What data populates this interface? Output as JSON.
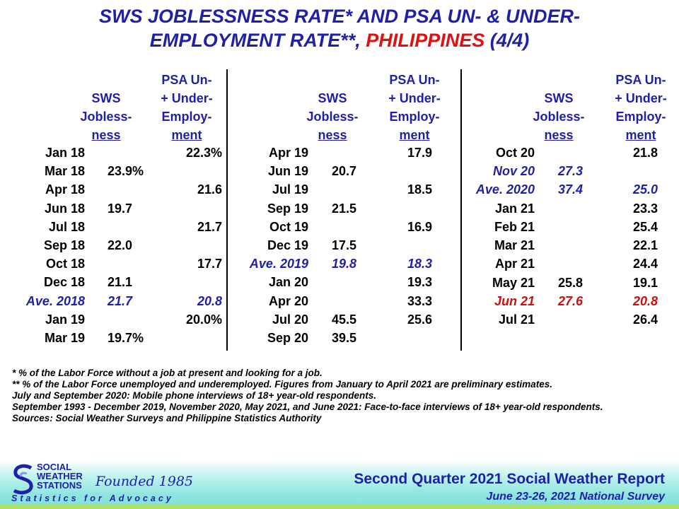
{
  "title": {
    "line1": "SWS JOBLESSNESS RATE* AND PSA UN- & UNDER-",
    "line2_prefix": "EMPLOYMENT RATE**, ",
    "line2_red": "PHILIPPINES",
    "line2_suffix": " (4/4)"
  },
  "headers": {
    "sws": [
      "SWS",
      "Jobless-",
      "ness"
    ],
    "psa": [
      "PSA Un-",
      "+ Under-",
      "Employ-",
      "ment"
    ]
  },
  "panels": [
    {
      "rows": [
        {
          "label": "Jan 18",
          "sws": "",
          "psa": "22.3%"
        },
        {
          "label": "Mar 18",
          "sws": "23.9%",
          "psa": ""
        },
        {
          "label": "Apr 18",
          "sws": "",
          "psa": "21.6"
        },
        {
          "label": "Jun 18",
          "sws": "19.7",
          "psa": ""
        },
        {
          "label": "Jul 18",
          "sws": "",
          "psa": "21.7"
        },
        {
          "label": "Sep 18",
          "sws": "22.0",
          "psa": ""
        },
        {
          "label": "Oct 18",
          "sws": "",
          "psa": "17.7"
        },
        {
          "label": "Dec 18",
          "sws": "21.1",
          "psa": ""
        },
        {
          "label": "Ave. 2018",
          "sws": "21.7",
          "psa": "20.8",
          "style": "blue"
        },
        {
          "label": "Jan 19",
          "sws": "",
          "psa": "20.0%"
        },
        {
          "label": "Mar 19",
          "sws": "19.7%",
          "psa": ""
        }
      ]
    },
    {
      "rows": [
        {
          "label": "Apr 19",
          "sws": "",
          "psa": "17.9"
        },
        {
          "label": "Jun 19",
          "sws": "20.7",
          "psa": ""
        },
        {
          "label": "Jul 19",
          "sws": "",
          "psa": "18.5"
        },
        {
          "label": "Sep 19",
          "sws": "21.5",
          "psa": ""
        },
        {
          "label": "Oct 19",
          "sws": "",
          "psa": "16.9"
        },
        {
          "label": "Dec 19",
          "sws": "17.5",
          "psa": ""
        },
        {
          "label": "Ave. 2019",
          "sws": "19.8",
          "psa": "18.3",
          "style": "blue"
        },
        {
          "label": "Jan 20",
          "sws": "",
          "psa": "19.3"
        },
        {
          "label": "Apr 20",
          "sws": "",
          "psa": "33.3"
        },
        {
          "label": "Jul 20",
          "sws": "45.5",
          "psa": "25.6"
        },
        {
          "label": "Sep 20",
          "sws": "39.5",
          "psa": ""
        }
      ]
    },
    {
      "rows": [
        {
          "label": "Oct 20",
          "sws": "",
          "psa": "21.8"
        },
        {
          "label": "Nov 20",
          "sws": "27.3",
          "psa": "",
          "style": "blue"
        },
        {
          "label": "Ave. 2020",
          "sws": "37.4",
          "psa": "25.0",
          "style": "blue"
        },
        {
          "label": "Jan 21",
          "sws": "",
          "psa": "23.3"
        },
        {
          "label": "Feb 21",
          "sws": "",
          "psa": "25.4"
        },
        {
          "label": "Mar 21",
          "sws": "",
          "psa": "22.1"
        },
        {
          "label": "Apr 21",
          "sws": "",
          "psa": "24.4"
        },
        {
          "label": "May 21",
          "sws": "25.8",
          "psa": "19.1"
        },
        {
          "label": "Jun 21",
          "sws": "27.6",
          "psa": "20.8",
          "style": "red"
        },
        {
          "label": "Jul 21",
          "sws": "",
          "psa": "26.4"
        }
      ]
    }
  ],
  "notes": [
    "* % of the Labor Force without  a job at present  and looking  for a job.",
    "** % of the Labor Force unemployed and underemployed.  Figures  from January to April 2021 are preliminary estimates.",
    "July and September 2020: Mobile phone interviews of 18+ year-old respondents.",
    "September 1993 - December 2019, November 2020, May 2021, and June 2021: Face-to-face  interviews  of 18+ year-old respondents.",
    "Sources: Social Weather Surveys and Philippine Statistics Authority"
  ],
  "footer": {
    "logo_lines": [
      "SOCIAL",
      "WEATHER",
      "STATIONS"
    ],
    "founded": "Founded 1985",
    "tagline": "Statistics for Advocacy",
    "report_title": "Second Quarter 2021 Social Weather Report",
    "report_subtitle": "June 23-26, 2021 National Survey"
  },
  "colors": {
    "title_blue": "#1f1fa8",
    "highlight_red": "#e01010",
    "ave_blue": "#1f1fa8",
    "footer_teal": "#8fe6de"
  }
}
